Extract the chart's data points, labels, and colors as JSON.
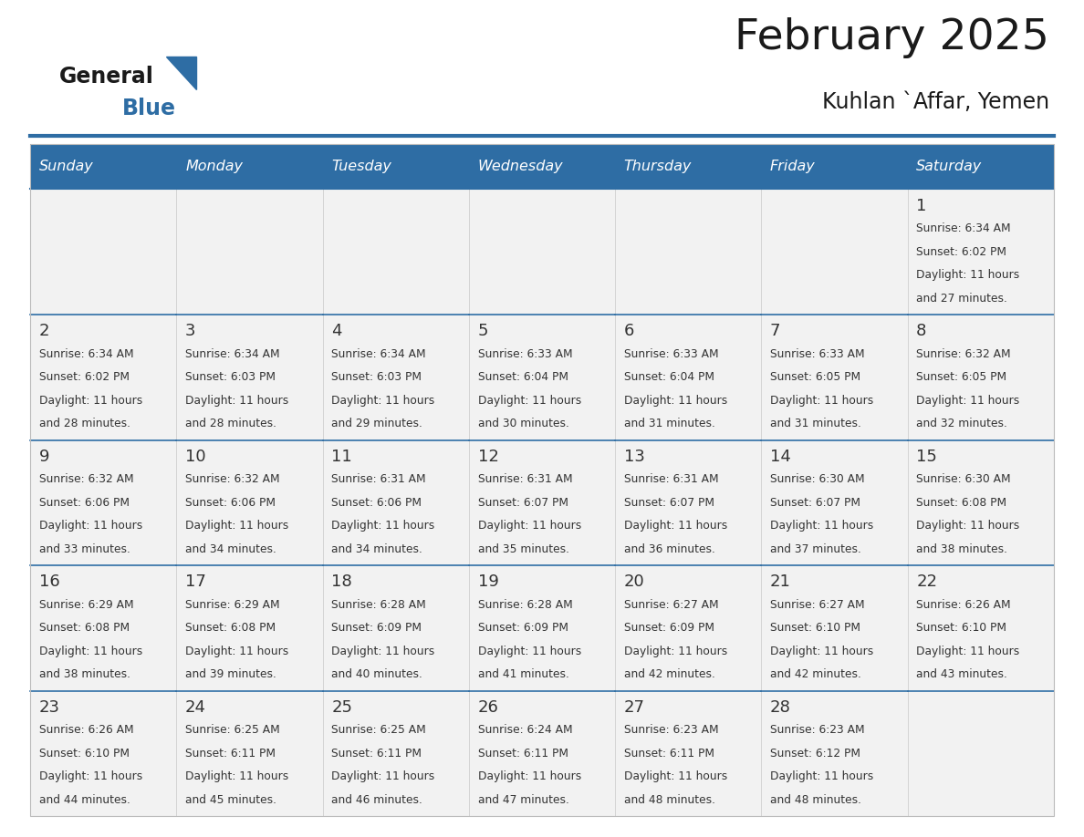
{
  "title": "February 2025",
  "subtitle": "Kuhlan `Affar, Yemen",
  "days_of_week": [
    "Sunday",
    "Monday",
    "Tuesday",
    "Wednesday",
    "Thursday",
    "Friday",
    "Saturday"
  ],
  "header_bg": "#2E6DA4",
  "header_text_color": "#FFFFFF",
  "cell_bg": "#F2F2F2",
  "divider_color": "#2E6DA4",
  "text_color": "#333333",
  "calendar_data": [
    [
      null,
      null,
      null,
      null,
      null,
      null,
      {
        "day": 1,
        "sunrise": "6:34 AM",
        "sunset": "6:02 PM",
        "daylight": "11 hours and 27 minutes."
      }
    ],
    [
      {
        "day": 2,
        "sunrise": "6:34 AM",
        "sunset": "6:02 PM",
        "daylight": "11 hours and 28 minutes."
      },
      {
        "day": 3,
        "sunrise": "6:34 AM",
        "sunset": "6:03 PM",
        "daylight": "11 hours and 28 minutes."
      },
      {
        "day": 4,
        "sunrise": "6:34 AM",
        "sunset": "6:03 PM",
        "daylight": "11 hours and 29 minutes."
      },
      {
        "day": 5,
        "sunrise": "6:33 AM",
        "sunset": "6:04 PM",
        "daylight": "11 hours and 30 minutes."
      },
      {
        "day": 6,
        "sunrise": "6:33 AM",
        "sunset": "6:04 PM",
        "daylight": "11 hours and 31 minutes."
      },
      {
        "day": 7,
        "sunrise": "6:33 AM",
        "sunset": "6:05 PM",
        "daylight": "11 hours and 31 minutes."
      },
      {
        "day": 8,
        "sunrise": "6:32 AM",
        "sunset": "6:05 PM",
        "daylight": "11 hours and 32 minutes."
      }
    ],
    [
      {
        "day": 9,
        "sunrise": "6:32 AM",
        "sunset": "6:06 PM",
        "daylight": "11 hours and 33 minutes."
      },
      {
        "day": 10,
        "sunrise": "6:32 AM",
        "sunset": "6:06 PM",
        "daylight": "11 hours and 34 minutes."
      },
      {
        "day": 11,
        "sunrise": "6:31 AM",
        "sunset": "6:06 PM",
        "daylight": "11 hours and 34 minutes."
      },
      {
        "day": 12,
        "sunrise": "6:31 AM",
        "sunset": "6:07 PM",
        "daylight": "11 hours and 35 minutes."
      },
      {
        "day": 13,
        "sunrise": "6:31 AM",
        "sunset": "6:07 PM",
        "daylight": "11 hours and 36 minutes."
      },
      {
        "day": 14,
        "sunrise": "6:30 AM",
        "sunset": "6:07 PM",
        "daylight": "11 hours and 37 minutes."
      },
      {
        "day": 15,
        "sunrise": "6:30 AM",
        "sunset": "6:08 PM",
        "daylight": "11 hours and 38 minutes."
      }
    ],
    [
      {
        "day": 16,
        "sunrise": "6:29 AM",
        "sunset": "6:08 PM",
        "daylight": "11 hours and 38 minutes."
      },
      {
        "day": 17,
        "sunrise": "6:29 AM",
        "sunset": "6:08 PM",
        "daylight": "11 hours and 39 minutes."
      },
      {
        "day": 18,
        "sunrise": "6:28 AM",
        "sunset": "6:09 PM",
        "daylight": "11 hours and 40 minutes."
      },
      {
        "day": 19,
        "sunrise": "6:28 AM",
        "sunset": "6:09 PM",
        "daylight": "11 hours and 41 minutes."
      },
      {
        "day": 20,
        "sunrise": "6:27 AM",
        "sunset": "6:09 PM",
        "daylight": "11 hours and 42 minutes."
      },
      {
        "day": 21,
        "sunrise": "6:27 AM",
        "sunset": "6:10 PM",
        "daylight": "11 hours and 42 minutes."
      },
      {
        "day": 22,
        "sunrise": "6:26 AM",
        "sunset": "6:10 PM",
        "daylight": "11 hours and 43 minutes."
      }
    ],
    [
      {
        "day": 23,
        "sunrise": "6:26 AM",
        "sunset": "6:10 PM",
        "daylight": "11 hours and 44 minutes."
      },
      {
        "day": 24,
        "sunrise": "6:25 AM",
        "sunset": "6:11 PM",
        "daylight": "11 hours and 45 minutes."
      },
      {
        "day": 25,
        "sunrise": "6:25 AM",
        "sunset": "6:11 PM",
        "daylight": "11 hours and 46 minutes."
      },
      {
        "day": 26,
        "sunrise": "6:24 AM",
        "sunset": "6:11 PM",
        "daylight": "11 hours and 47 minutes."
      },
      {
        "day": 27,
        "sunrise": "6:23 AM",
        "sunset": "6:11 PM",
        "daylight": "11 hours and 48 minutes."
      },
      {
        "day": 28,
        "sunrise": "6:23 AM",
        "sunset": "6:12 PM",
        "daylight": "11 hours and 48 minutes."
      },
      null
    ]
  ],
  "logo_general_color": "#1a1a1a",
  "logo_blue_color": "#2E6DA4",
  "logo_triangle_color": "#2E6DA4"
}
